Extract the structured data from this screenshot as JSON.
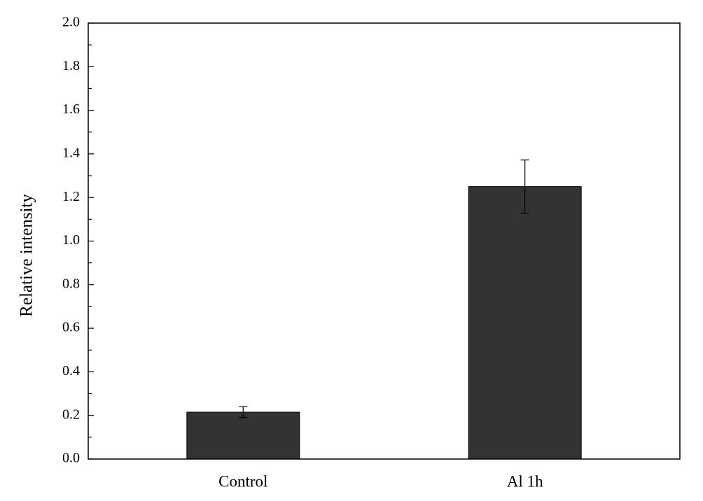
{
  "chart_data": {
    "type": "bar",
    "y_label": "Relative intensity",
    "categories": [
      "Control",
      "Al 1h"
    ],
    "values": [
      0.215,
      1.25
    ],
    "errors": [
      0.025,
      0.122
    ],
    "color": "#333333",
    "ylim": [
      0,
      2
    ],
    "yticks": [
      {
        "value": 0,
        "label": "0.0"
      },
      0.2,
      0.4,
      0.6,
      0.8,
      {
        "value": 1,
        "label": "1.0"
      },
      1.2,
      1.4,
      1.6,
      1.8,
      {
        "value": 2,
        "label": "2.0"
      }
    ],
    "minor_yticks": [
      0.1,
      0.3,
      0.5,
      0.7,
      0.9,
      1.1,
      1.3,
      1.5,
      1.7,
      1.9
    ]
  }
}
